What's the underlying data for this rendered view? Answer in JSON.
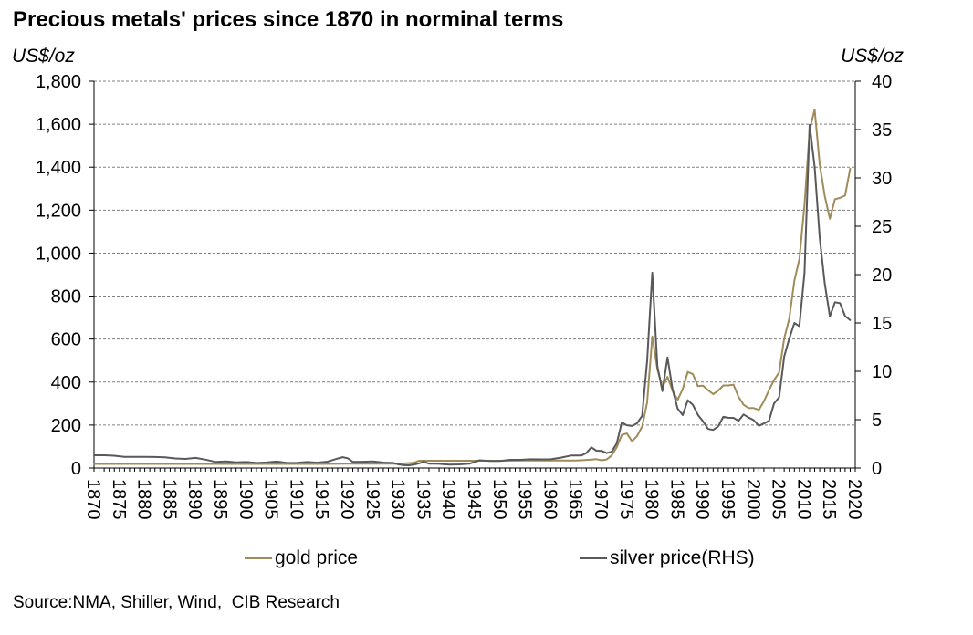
{
  "chart_data": {
    "type": "line",
    "title": "Precious metals' prices since 1870 in norminal terms",
    "ylabel_left": "US$/oz",
    "ylabel_right": "US$/oz",
    "ylim_left": [
      0,
      1800
    ],
    "ylim_right": [
      0,
      40
    ],
    "yticks_left": [
      "0",
      "200",
      "400",
      "600",
      "800",
      "1,000",
      "1,200",
      "1,400",
      "1,600",
      "1,800"
    ],
    "yticks_right": [
      "0",
      "5",
      "10",
      "15",
      "20",
      "25",
      "30",
      "35",
      "40"
    ],
    "xlim": [
      1870,
      2020
    ],
    "xticks": [
      "1870",
      "1875",
      "1880",
      "1885",
      "1890",
      "1895",
      "1900",
      "1905",
      "1910",
      "1915",
      "1920",
      "1925",
      "1930",
      "1935",
      "1940",
      "1945",
      "1950",
      "1955",
      "1960",
      "1965",
      "1970",
      "1975",
      "1980",
      "1985",
      "1990",
      "1995",
      "2000",
      "2005",
      "2010",
      "2015",
      "2020"
    ],
    "grid": "horizontal",
    "series": [
      {
        "name": "gold price",
        "axis": "left",
        "color": "#a08c5a",
        "points": [
          [
            1870,
            19
          ],
          [
            1875,
            19
          ],
          [
            1880,
            19
          ],
          [
            1885,
            19
          ],
          [
            1890,
            19
          ],
          [
            1895,
            19
          ],
          [
            1900,
            19
          ],
          [
            1905,
            19
          ],
          [
            1910,
            19
          ],
          [
            1915,
            19
          ],
          [
            1920,
            20
          ],
          [
            1925,
            20
          ],
          [
            1930,
            20
          ],
          [
            1933,
            24
          ],
          [
            1934,
            34
          ],
          [
            1940,
            34
          ],
          [
            1945,
            34
          ],
          [
            1950,
            34
          ],
          [
            1955,
            35
          ],
          [
            1960,
            35
          ],
          [
            1965,
            35
          ],
          [
            1968,
            39
          ],
          [
            1969,
            41
          ],
          [
            1970,
            36
          ],
          [
            1971,
            40
          ],
          [
            1972,
            58
          ],
          [
            1973,
            97
          ],
          [
            1974,
            154
          ],
          [
            1975,
            161
          ],
          [
            1976,
            125
          ],
          [
            1977,
            148
          ],
          [
            1978,
            193
          ],
          [
            1979,
            306
          ],
          [
            1980,
            612
          ],
          [
            1981,
            460
          ],
          [
            1982,
            376
          ],
          [
            1983,
            424
          ],
          [
            1984,
            361
          ],
          [
            1985,
            317
          ],
          [
            1986,
            368
          ],
          [
            1987,
            447
          ],
          [
            1988,
            437
          ],
          [
            1989,
            381
          ],
          [
            1990,
            383
          ],
          [
            1991,
            362
          ],
          [
            1992,
            344
          ],
          [
            1993,
            360
          ],
          [
            1994,
            384
          ],
          [
            1995,
            384
          ],
          [
            1996,
            388
          ],
          [
            1997,
            331
          ],
          [
            1998,
            294
          ],
          [
            1999,
            279
          ],
          [
            2000,
            279
          ],
          [
            2001,
            271
          ],
          [
            2002,
            310
          ],
          [
            2003,
            363
          ],
          [
            2004,
            409
          ],
          [
            2005,
            445
          ],
          [
            2006,
            604
          ],
          [
            2007,
            695
          ],
          [
            2008,
            872
          ],
          [
            2009,
            972
          ],
          [
            2010,
            1225
          ],
          [
            2011,
            1572
          ],
          [
            2012,
            1669
          ],
          [
            2013,
            1411
          ],
          [
            2014,
            1266
          ],
          [
            2015,
            1160
          ],
          [
            2016,
            1251
          ],
          [
            2017,
            1257
          ],
          [
            2018,
            1268
          ],
          [
            2019,
            1393
          ]
        ]
      },
      {
        "name": "silver price(RHS)",
        "axis": "right",
        "color": "#595959",
        "points": [
          [
            1870,
            1.32
          ],
          [
            1872,
            1.32
          ],
          [
            1874,
            1.27
          ],
          [
            1876,
            1.15
          ],
          [
            1878,
            1.15
          ],
          [
            1880,
            1.15
          ],
          [
            1882,
            1.14
          ],
          [
            1884,
            1.11
          ],
          [
            1886,
            0.99
          ],
          [
            1888,
            0.94
          ],
          [
            1890,
            1.05
          ],
          [
            1892,
            0.87
          ],
          [
            1894,
            0.63
          ],
          [
            1896,
            0.68
          ],
          [
            1898,
            0.59
          ],
          [
            1900,
            0.62
          ],
          [
            1902,
            0.53
          ],
          [
            1904,
            0.58
          ],
          [
            1906,
            0.67
          ],
          [
            1908,
            0.53
          ],
          [
            1910,
            0.54
          ],
          [
            1912,
            0.62
          ],
          [
            1914,
            0.56
          ],
          [
            1916,
            0.66
          ],
          [
            1917,
            0.82
          ],
          [
            1918,
            0.98
          ],
          [
            1919,
            1.12
          ],
          [
            1920,
            1.01
          ],
          [
            1921,
            0.63
          ],
          [
            1923,
            0.65
          ],
          [
            1925,
            0.69
          ],
          [
            1927,
            0.57
          ],
          [
            1929,
            0.53
          ],
          [
            1930,
            0.38
          ],
          [
            1931,
            0.29
          ],
          [
            1932,
            0.28
          ],
          [
            1933,
            0.35
          ],
          [
            1934,
            0.48
          ],
          [
            1935,
            0.64
          ],
          [
            1936,
            0.45
          ],
          [
            1937,
            0.45
          ],
          [
            1938,
            0.43
          ],
          [
            1939,
            0.39
          ],
          [
            1940,
            0.35
          ],
          [
            1942,
            0.38
          ],
          [
            1944,
            0.45
          ],
          [
            1946,
            0.8
          ],
          [
            1948,
            0.74
          ],
          [
            1950,
            0.74
          ],
          [
            1952,
            0.85
          ],
          [
            1954,
            0.85
          ],
          [
            1956,
            0.91
          ],
          [
            1958,
            0.9
          ],
          [
            1960,
            0.91
          ],
          [
            1962,
            1.08
          ],
          [
            1964,
            1.29
          ],
          [
            1966,
            1.29
          ],
          [
            1967,
            1.55
          ],
          [
            1968,
            2.14
          ],
          [
            1969,
            1.79
          ],
          [
            1970,
            1.77
          ],
          [
            1971,
            1.55
          ],
          [
            1972,
            1.68
          ],
          [
            1973,
            2.56
          ],
          [
            1974,
            4.71
          ],
          [
            1975,
            4.42
          ],
          [
            1976,
            4.35
          ],
          [
            1977,
            4.62
          ],
          [
            1978,
            5.4
          ],
          [
            1979,
            11.09
          ],
          [
            1980,
            20.2
          ],
          [
            1981,
            10.52
          ],
          [
            1982,
            7.95
          ],
          [
            1983,
            11.44
          ],
          [
            1984,
            8.14
          ],
          [
            1985,
            6.14
          ],
          [
            1986,
            5.47
          ],
          [
            1987,
            7.01
          ],
          [
            1988,
            6.53
          ],
          [
            1989,
            5.5
          ],
          [
            1990,
            4.82
          ],
          [
            1991,
            4.04
          ],
          [
            1992,
            3.94
          ],
          [
            1993,
            4.3
          ],
          [
            1994,
            5.29
          ],
          [
            1995,
            5.2
          ],
          [
            1996,
            5.19
          ],
          [
            1997,
            4.89
          ],
          [
            1998,
            5.54
          ],
          [
            1999,
            5.22
          ],
          [
            2000,
            4.95
          ],
          [
            2001,
            4.37
          ],
          [
            2002,
            4.6
          ],
          [
            2003,
            4.88
          ],
          [
            2004,
            6.67
          ],
          [
            2005,
            7.31
          ],
          [
            2006,
            11.55
          ],
          [
            2007,
            13.38
          ],
          [
            2008,
            14.99
          ],
          [
            2009,
            14.67
          ],
          [
            2010,
            20.19
          ],
          [
            2011,
            35.5
          ],
          [
            2012,
            31.15
          ],
          [
            2013,
            23.79
          ],
          [
            2014,
            19.08
          ],
          [
            2015,
            15.68
          ],
          [
            2016,
            17.14
          ],
          [
            2017,
            17.05
          ],
          [
            2018,
            15.71
          ],
          [
            2019,
            15.3
          ]
        ]
      }
    ],
    "source": "Source:NMA, Shiller, Wind,  CIB Research"
  }
}
